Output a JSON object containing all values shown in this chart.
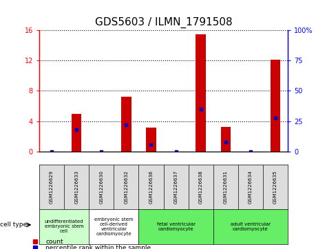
{
  "title": "GDS5603 / ILMN_1791508",
  "samples": [
    "GSM1226629",
    "GSM1226633",
    "GSM1226630",
    "GSM1226632",
    "GSM1226636",
    "GSM1226637",
    "GSM1226638",
    "GSM1226631",
    "GSM1226634",
    "GSM1226635"
  ],
  "counts": [
    0,
    5.0,
    0,
    7.2,
    3.2,
    0,
    15.4,
    3.3,
    0,
    12.1
  ],
  "percentiles": [
    0,
    18,
    0,
    22,
    6,
    0,
    35,
    8,
    0,
    28
  ],
  "ylim_left": [
    0,
    16
  ],
  "ylim_right": [
    0,
    100
  ],
  "yticks_left": [
    0,
    4,
    8,
    12,
    16
  ],
  "ytick_labels_left": [
    "0",
    "4",
    "8",
    "12",
    "16"
  ],
  "yticks_right": [
    0,
    25,
    50,
    75,
    100
  ],
  "ytick_labels_right": [
    "0",
    "25",
    "50",
    "75",
    "100%"
  ],
  "bar_color": "#cc0000",
  "dot_color": "#0000cc",
  "cell_type_groups": [
    {
      "label": "undifferentiated\nembryonic stem\ncell",
      "span": [
        0,
        2
      ],
      "color": "#ccffcc"
    },
    {
      "label": "embryonic stem\ncell-derived\nventricular\ncardiomyocyte",
      "span": [
        2,
        4
      ],
      "color": "#ffffff"
    },
    {
      "label": "fetal ventricular\ncardiomyocyte",
      "span": [
        4,
        7
      ],
      "color": "#66ee66"
    },
    {
      "label": "adult ventricular\ncardiomyocyte",
      "span": [
        7,
        10
      ],
      "color": "#66ee66"
    }
  ],
  "title_fontsize": 11,
  "tick_fontsize": 7,
  "bar_width": 0.4
}
